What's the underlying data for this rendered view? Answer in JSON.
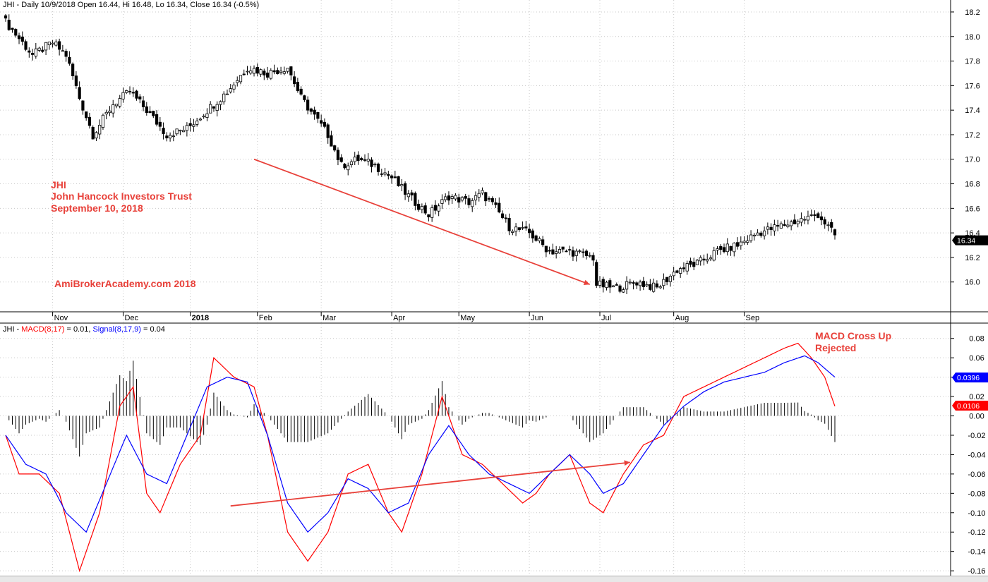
{
  "header": {
    "price_text": "JHI - Daily 10/9/2018 Open 16.44, Hi 16.48, Lo 16.34, Close 16.34 (-0.5%)",
    "macd_prefix": "JHI - ",
    "macd_label": "MACD(8,17)",
    "macd_value": " = 0.01, ",
    "signal_label": "Signal(8,17,9)",
    "signal_value": " = 0.04"
  },
  "annotations": {
    "ticker": "JHI",
    "company": "John Hancock Investors Trust",
    "date": "September 10, 2018",
    "watermark": "AmiBrokerAcademy.com  2018",
    "macd_note_line1": "MACD Cross Up",
    "macd_note_line2": "Rejected"
  },
  "colors": {
    "macd": "#ff0000",
    "signal": "#0000ff",
    "annotation": "#e8413a",
    "candle": "#000000"
  },
  "chart_data": [
    {
      "type": "candlestick",
      "ylim": [
        15.78,
        18.24
      ],
      "yticks": [
        16.0,
        16.2,
        16.4,
        16.6,
        16.8,
        17.0,
        17.2,
        17.4,
        17.6,
        17.8,
        18.0,
        18.2
      ],
      "months": [
        "Nov",
        "Dec",
        "2018",
        "Feb",
        "Mar",
        "Apr",
        "May",
        "Jun",
        "Jul",
        "Aug",
        "Sep"
      ],
      "last_price": "16.34",
      "anchors": [
        [
          0,
          18.12
        ],
        [
          8,
          17.85
        ],
        [
          14,
          17.95
        ],
        [
          18,
          17.85
        ],
        [
          22,
          17.5
        ],
        [
          26,
          17.2
        ],
        [
          32,
          17.45
        ],
        [
          37,
          17.55
        ],
        [
          42,
          17.4
        ],
        [
          48,
          17.2
        ],
        [
          54,
          17.25
        ],
        [
          60,
          17.4
        ],
        [
          66,
          17.55
        ],
        [
          72,
          17.75
        ],
        [
          78,
          17.7
        ],
        [
          84,
          17.75
        ],
        [
          88,
          17.5
        ],
        [
          92,
          17.35
        ],
        [
          96,
          17.2
        ],
        [
          100,
          16.95
        ],
        [
          105,
          17.0
        ],
        [
          110,
          16.95
        ],
        [
          115,
          16.85
        ],
        [
          120,
          16.7
        ],
        [
          126,
          16.55
        ],
        [
          132,
          16.7
        ],
        [
          138,
          16.65
        ],
        [
          142,
          16.72
        ],
        [
          146,
          16.6
        ],
        [
          150,
          16.45
        ],
        [
          156,
          16.4
        ],
        [
          162,
          16.25
        ],
        [
          168,
          16.25
        ],
        [
          175,
          16.2
        ],
        [
          176,
          15.98
        ],
        [
          182,
          15.95
        ],
        [
          188,
          16.0
        ],
        [
          194,
          15.95
        ],
        [
          200,
          16.1
        ],
        [
          206,
          16.15
        ],
        [
          212,
          16.25
        ],
        [
          218,
          16.3
        ],
        [
          224,
          16.4
        ],
        [
          230,
          16.45
        ],
        [
          236,
          16.5
        ],
        [
          242,
          16.55
        ],
        [
          247,
          16.38
        ]
      ]
    },
    {
      "type": "line",
      "ylim": [
        -0.165,
        0.09
      ],
      "yticks": [
        -0.16,
        -0.14,
        -0.12,
        -0.1,
        -0.08,
        -0.06,
        -0.04,
        -0.02,
        0.0,
        0.02,
        0.04,
        0.06,
        0.08
      ],
      "macd_last": "0.0106",
      "signal_last": "0.0396",
      "series": [
        {
          "name": "MACD(8,17)",
          "anchors": [
            [
              0,
              -0.02
            ],
            [
              4,
              -0.06
            ],
            [
              10,
              -0.06
            ],
            [
              16,
              -0.08
            ],
            [
              22,
              -0.16
            ],
            [
              28,
              -0.1
            ],
            [
              34,
              0.01
            ],
            [
              38,
              0.03
            ],
            [
              42,
              -0.08
            ],
            [
              46,
              -0.1
            ],
            [
              52,
              -0.05
            ],
            [
              58,
              -0.02
            ],
            [
              62,
              0.06
            ],
            [
              68,
              0.04
            ],
            [
              74,
              0.03
            ],
            [
              78,
              -0.02
            ],
            [
              84,
              -0.12
            ],
            [
              90,
              -0.15
            ],
            [
              96,
              -0.12
            ],
            [
              102,
              -0.06
            ],
            [
              108,
              -0.05
            ],
            [
              114,
              -0.1
            ],
            [
              118,
              -0.12
            ],
            [
              124,
              -0.06
            ],
            [
              130,
              0.02
            ],
            [
              136,
              -0.04
            ],
            [
              142,
              -0.05
            ],
            [
              148,
              -0.07
            ],
            [
              154,
              -0.09
            ],
            [
              158,
              -0.08
            ],
            [
              162,
              -0.06
            ],
            [
              168,
              -0.04
            ],
            [
              174,
              -0.09
            ],
            [
              178,
              -0.1
            ],
            [
              184,
              -0.06
            ],
            [
              190,
              -0.03
            ],
            [
              196,
              -0.02
            ],
            [
              202,
              0.02
            ],
            [
              208,
              0.03
            ],
            [
              214,
              0.04
            ],
            [
              220,
              0.05
            ],
            [
              226,
              0.06
            ],
            [
              232,
              0.07
            ],
            [
              236,
              0.075
            ],
            [
              240,
              0.06
            ],
            [
              244,
              0.04
            ],
            [
              247,
              0.01
            ]
          ]
        },
        {
          "name": "Signal(8,17,9)",
          "anchors": [
            [
              0,
              -0.02
            ],
            [
              6,
              -0.05
            ],
            [
              12,
              -0.06
            ],
            [
              18,
              -0.1
            ],
            [
              24,
              -0.12
            ],
            [
              30,
              -0.07
            ],
            [
              36,
              -0.02
            ],
            [
              42,
              -0.06
            ],
            [
              48,
              -0.07
            ],
            [
              54,
              -0.02
            ],
            [
              60,
              0.03
            ],
            [
              66,
              0.04
            ],
            [
              72,
              0.035
            ],
            [
              78,
              -0.02
            ],
            [
              84,
              -0.09
            ],
            [
              90,
              -0.12
            ],
            [
              96,
              -0.1
            ],
            [
              102,
              -0.065
            ],
            [
              108,
              -0.075
            ],
            [
              114,
              -0.1
            ],
            [
              120,
              -0.09
            ],
            [
              126,
              -0.04
            ],
            [
              132,
              -0.01
            ],
            [
              138,
              -0.04
            ],
            [
              144,
              -0.06
            ],
            [
              150,
              -0.07
            ],
            [
              156,
              -0.08
            ],
            [
              162,
              -0.06
            ],
            [
              168,
              -0.04
            ],
            [
              174,
              -0.06
            ],
            [
              178,
              -0.08
            ],
            [
              184,
              -0.07
            ],
            [
              190,
              -0.04
            ],
            [
              196,
              -0.01
            ],
            [
              202,
              0.01
            ],
            [
              208,
              0.025
            ],
            [
              214,
              0.035
            ],
            [
              220,
              0.04
            ],
            [
              226,
              0.045
            ],
            [
              232,
              0.055
            ],
            [
              238,
              0.062
            ],
            [
              242,
              0.055
            ],
            [
              247,
              0.04
            ]
          ]
        }
      ]
    }
  ]
}
